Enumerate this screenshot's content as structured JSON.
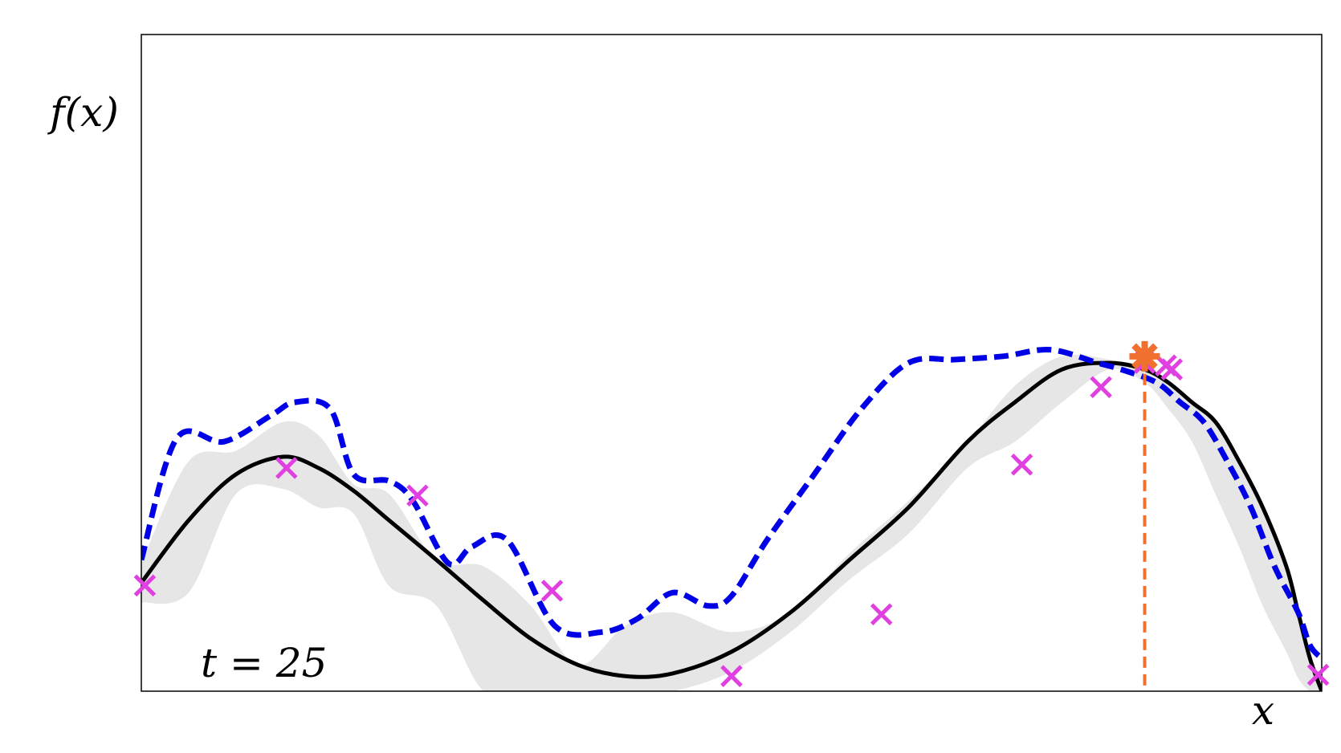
{
  "chart_data": {
    "type": "line",
    "title": "",
    "xlabel": "x",
    "ylabel": "f(x)",
    "xlim": [
      0,
      1
    ],
    "ylim": [
      0,
      1
    ],
    "grid": false,
    "ticks": "none",
    "annotation": "t = 25",
    "colors": {
      "true_function": "#000000",
      "uncertainty_band": "#e6e6e6",
      "upper_bound": "#0000e6",
      "observations": "#e040e0",
      "maximizer": "#f07030"
    },
    "true_function": {
      "x": [
        0.0,
        0.04,
        0.08,
        0.12,
        0.15,
        0.18,
        0.21,
        0.25,
        0.29,
        0.33,
        0.37,
        0.41,
        0.45,
        0.5,
        0.55,
        0.6,
        0.65,
        0.7,
        0.74,
        0.78,
        0.82,
        0.85,
        0.87,
        0.89,
        0.91,
        0.93,
        0.95,
        0.97,
        0.98,
        0.99,
        1.0
      ],
      "y": [
        0.165,
        0.26,
        0.33,
        0.357,
        0.34,
        0.305,
        0.26,
        0.2,
        0.138,
        0.08,
        0.04,
        0.023,
        0.027,
        0.06,
        0.12,
        0.2,
        0.28,
        0.38,
        0.44,
        0.49,
        0.5,
        0.49,
        0.47,
        0.44,
        0.41,
        0.35,
        0.28,
        0.19,
        0.12,
        0.05,
        0.0
      ]
    },
    "band_upper": {
      "x": [
        0.0,
        0.04,
        0.08,
        0.12,
        0.15,
        0.18,
        0.21,
        0.25,
        0.29,
        0.33,
        0.37,
        0.41,
        0.45,
        0.5,
        0.55,
        0.6,
        0.65,
        0.7,
        0.74,
        0.78,
        0.82,
        0.85,
        0.87,
        0.89,
        0.91,
        0.93,
        0.95,
        0.97,
        0.98,
        0.99,
        1.0
      ],
      "y": [
        0.195,
        0.35,
        0.366,
        0.41,
        0.39,
        0.315,
        0.3,
        0.2,
        0.19,
        0.13,
        0.04,
        0.1,
        0.12,
        0.09,
        0.12,
        0.21,
        0.29,
        0.38,
        0.465,
        0.51,
        0.505,
        0.49,
        0.47,
        0.44,
        0.41,
        0.35,
        0.28,
        0.19,
        0.11,
        0.05,
        0.0
      ]
    },
    "band_lower": {
      "x": [
        0.0,
        0.04,
        0.08,
        0.12,
        0.15,
        0.18,
        0.21,
        0.25,
        0.29,
        0.33,
        0.37,
        0.41,
        0.45,
        0.5,
        0.55,
        0.6,
        0.65,
        0.7,
        0.74,
        0.78,
        0.82,
        0.85,
        0.87,
        0.89,
        0.91,
        0.93,
        0.95,
        0.97,
        0.98,
        0.99,
        1.0
      ],
      "y": [
        0.135,
        0.15,
        0.3,
        0.308,
        0.28,
        0.27,
        0.16,
        0.13,
        0.0,
        0.0,
        0.0,
        0.0,
        0.0,
        0.03,
        0.09,
        0.17,
        0.24,
        0.34,
        0.38,
        0.44,
        0.49,
        0.47,
        0.43,
        0.38,
        0.3,
        0.22,
        0.13,
        0.06,
        0.02,
        0.0,
        0.0
      ]
    },
    "ucb": {
      "x": [
        0.0,
        0.03,
        0.07,
        0.11,
        0.13,
        0.16,
        0.18,
        0.21,
        0.23,
        0.26,
        0.28,
        0.31,
        0.35,
        0.39,
        0.42,
        0.45,
        0.48,
        0.5,
        0.53,
        0.57,
        0.61,
        0.65,
        0.69,
        0.73,
        0.77,
        0.81,
        0.83,
        0.86,
        0.88,
        0.9,
        0.92,
        0.94,
        0.96,
        0.98,
        0.99,
        1.0
      ],
      "y": [
        0.2,
        0.385,
        0.38,
        0.42,
        0.44,
        0.43,
        0.33,
        0.32,
        0.29,
        0.195,
        0.22,
        0.23,
        0.1,
        0.09,
        0.11,
        0.15,
        0.13,
        0.145,
        0.23,
        0.33,
        0.43,
        0.5,
        0.505,
        0.51,
        0.52,
        0.5,
        0.49,
        0.47,
        0.44,
        0.41,
        0.35,
        0.28,
        0.19,
        0.12,
        0.07,
        0.05
      ]
    },
    "observations": {
      "x": [
        0.003,
        0.123,
        0.234,
        0.348,
        0.5,
        0.627,
        0.746,
        0.813,
        0.85,
        0.868,
        0.873,
        0.997
      ],
      "y": [
        0.161,
        0.34,
        0.298,
        0.153,
        0.023,
        0.117,
        0.345,
        0.463,
        0.5,
        0.496,
        0.49,
        0.025
      ]
    },
    "maximizer": {
      "x": 0.85,
      "y": 0.51
    }
  }
}
